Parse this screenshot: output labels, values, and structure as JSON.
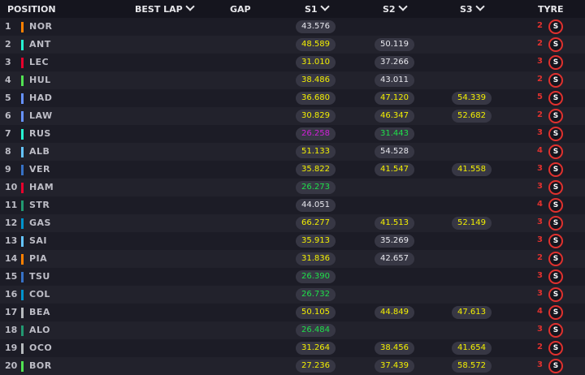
{
  "header": {
    "position": "POSITION",
    "best_lap": "BEST LAP",
    "gap": "GAP",
    "s1": "S1",
    "s2": "S2",
    "s3": "S3",
    "tyre": "TYRE"
  },
  "colors": {
    "personal_best": "#1fe04a",
    "overall_best": "#d020d8",
    "normal": "#f4f000",
    "completed": "#e8e8ee",
    "soft_tyre": "#e0312e"
  },
  "rows": [
    {
      "pos": "1",
      "code": "NOR",
      "team_color": "#ff8000",
      "s1": "43.576",
      "s1_c": "white",
      "s2": "",
      "s2_c": "",
      "s3": "",
      "s3_c": "",
      "stint": "2",
      "tyre": "S"
    },
    {
      "pos": "2",
      "code": "ANT",
      "team_color": "#27f4d2",
      "s1": "48.589",
      "s1_c": "yellow",
      "s2": "50.119",
      "s2_c": "white",
      "s3": "",
      "s3_c": "",
      "stint": "2",
      "tyre": "S"
    },
    {
      "pos": "3",
      "code": "LEC",
      "team_color": "#e8002d",
      "s1": "31.010",
      "s1_c": "yellow",
      "s2": "37.266",
      "s2_c": "white",
      "s3": "",
      "s3_c": "",
      "stint": "3",
      "tyre": "S"
    },
    {
      "pos": "4",
      "code": "HUL",
      "team_color": "#52e252",
      "s1": "38.486",
      "s1_c": "yellow",
      "s2": "43.011",
      "s2_c": "white",
      "s3": "",
      "s3_c": "",
      "stint": "2",
      "tyre": "S"
    },
    {
      "pos": "5",
      "code": "HAD",
      "team_color": "#6692ff",
      "s1": "36.680",
      "s1_c": "yellow",
      "s2": "47.120",
      "s2_c": "yellow",
      "s3": "54.339",
      "s3_c": "yellow",
      "stint": "5",
      "tyre": "S"
    },
    {
      "pos": "6",
      "code": "LAW",
      "team_color": "#6692ff",
      "s1": "30.829",
      "s1_c": "yellow",
      "s2": "46.347",
      "s2_c": "yellow",
      "s3": "52.682",
      "s3_c": "yellow",
      "stint": "2",
      "tyre": "S"
    },
    {
      "pos": "7",
      "code": "RUS",
      "team_color": "#27f4d2",
      "s1": "26.258",
      "s1_c": "purple",
      "s2": "31.443",
      "s2_c": "green",
      "s3": "",
      "s3_c": "",
      "stint": "3",
      "tyre": "S"
    },
    {
      "pos": "8",
      "code": "ALB",
      "team_color": "#64c4ff",
      "s1": "51.133",
      "s1_c": "yellow",
      "s2": "54.528",
      "s2_c": "white",
      "s3": "",
      "s3_c": "",
      "stint": "4",
      "tyre": "S"
    },
    {
      "pos": "9",
      "code": "VER",
      "team_color": "#3671c6",
      "s1": "35.822",
      "s1_c": "yellow",
      "s2": "41.547",
      "s2_c": "yellow",
      "s3": "41.558",
      "s3_c": "yellow",
      "stint": "3",
      "tyre": "S"
    },
    {
      "pos": "10",
      "code": "HAM",
      "team_color": "#e8002d",
      "s1": "26.273",
      "s1_c": "green",
      "s2": "",
      "s2_c": "",
      "s3": "",
      "s3_c": "",
      "stint": "3",
      "tyre": "S"
    },
    {
      "pos": "11",
      "code": "STR",
      "team_color": "#229971",
      "s1": "44.051",
      "s1_c": "white",
      "s2": "",
      "s2_c": "",
      "s3": "",
      "s3_c": "",
      "stint": "4",
      "tyre": "S"
    },
    {
      "pos": "12",
      "code": "GAS",
      "team_color": "#0093cc",
      "s1": "66.277",
      "s1_c": "yellow",
      "s2": "41.513",
      "s2_c": "yellow",
      "s3": "52.149",
      "s3_c": "yellow",
      "stint": "3",
      "tyre": "S"
    },
    {
      "pos": "13",
      "code": "SAI",
      "team_color": "#64c4ff",
      "s1": "35.913",
      "s1_c": "yellow",
      "s2": "35.269",
      "s2_c": "white",
      "s3": "",
      "s3_c": "",
      "stint": "3",
      "tyre": "S"
    },
    {
      "pos": "14",
      "code": "PIA",
      "team_color": "#ff8000",
      "s1": "31.836",
      "s1_c": "yellow",
      "s2": "42.657",
      "s2_c": "white",
      "s3": "",
      "s3_c": "",
      "stint": "2",
      "tyre": "S"
    },
    {
      "pos": "15",
      "code": "TSU",
      "team_color": "#3671c6",
      "s1": "26.390",
      "s1_c": "green",
      "s2": "",
      "s2_c": "",
      "s3": "",
      "s3_c": "",
      "stint": "3",
      "tyre": "S"
    },
    {
      "pos": "16",
      "code": "COL",
      "team_color": "#0093cc",
      "s1": "26.732",
      "s1_c": "green",
      "s2": "",
      "s2_c": "",
      "s3": "",
      "s3_c": "",
      "stint": "3",
      "tyre": "S"
    },
    {
      "pos": "17",
      "code": "BEA",
      "team_color": "#b6babd",
      "s1": "50.105",
      "s1_c": "yellow",
      "s2": "44.849",
      "s2_c": "yellow",
      "s3": "47.613",
      "s3_c": "yellow",
      "stint": "4",
      "tyre": "S"
    },
    {
      "pos": "18",
      "code": "ALO",
      "team_color": "#229971",
      "s1": "26.484",
      "s1_c": "green",
      "s2": "",
      "s2_c": "",
      "s3": "",
      "s3_c": "",
      "stint": "3",
      "tyre": "S"
    },
    {
      "pos": "19",
      "code": "OCO",
      "team_color": "#b6babd",
      "s1": "31.264",
      "s1_c": "yellow",
      "s2": "38.456",
      "s2_c": "yellow",
      "s3": "41.654",
      "s3_c": "yellow",
      "stint": "2",
      "tyre": "S"
    },
    {
      "pos": "20",
      "code": "BOR",
      "team_color": "#52e252",
      "s1": "27.236",
      "s1_c": "yellow",
      "s2": "37.439",
      "s2_c": "yellow",
      "s3": "58.572",
      "s3_c": "yellow",
      "stint": "3",
      "tyre": "S"
    }
  ]
}
